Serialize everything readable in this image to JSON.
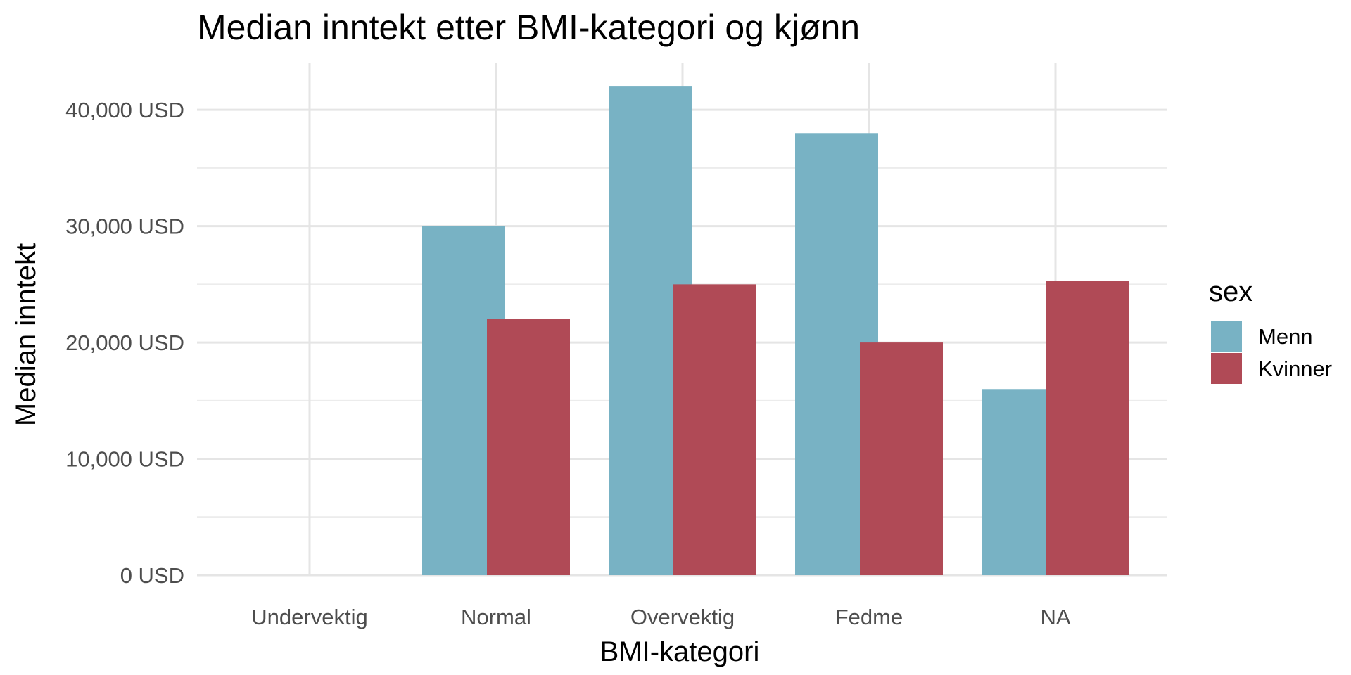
{
  "chart_data": {
    "type": "bar",
    "title": "Median inntekt etter BMI-kategori og kjønn",
    "xlabel": "BMI-kategori",
    "ylabel": "Median inntekt",
    "categories": [
      "Undervektig",
      "Normal",
      "Overvektig",
      "Fedme",
      "NA"
    ],
    "series": [
      {
        "name": "Menn",
        "color": "#78b2c4",
        "values": [
          null,
          30000,
          42000,
          38000,
          16000
        ]
      },
      {
        "name": "Kvinner",
        "color": "#b04a56",
        "values": [
          null,
          22000,
          25000,
          20000,
          25300
        ]
      }
    ],
    "ylim": [
      0,
      44000
    ],
    "yticks": [
      0,
      10000,
      20000,
      30000,
      40000
    ],
    "ytick_labels": [
      "0 USD",
      "10,000 USD",
      "20,000 USD",
      "30,000 USD",
      "40,000 USD"
    ],
    "legend": {
      "title": "sex",
      "position": "right"
    },
    "grid": true
  }
}
